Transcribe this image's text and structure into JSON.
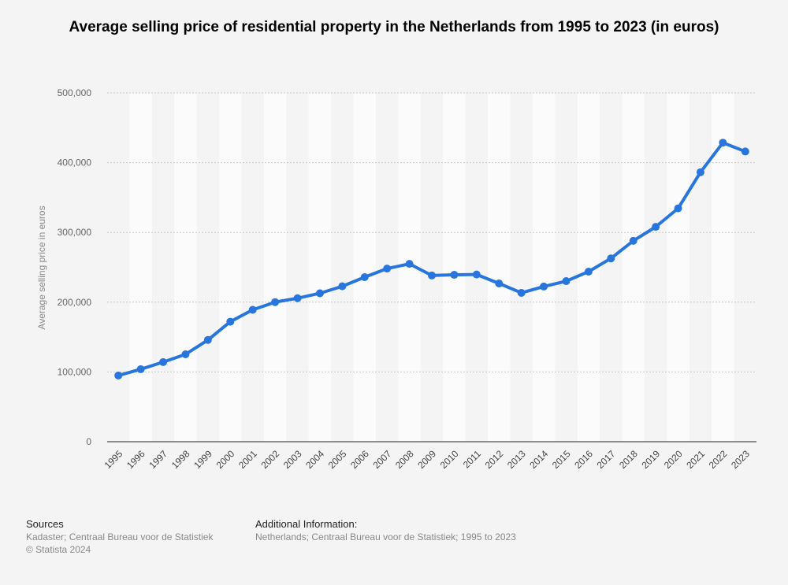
{
  "chart_data": {
    "type": "line",
    "title": "Average selling price of residential property in the Netherlands from 1995 to 2023 (in euros)",
    "xlabel": "",
    "ylabel": "Average selling price in euros",
    "ylim": [
      0,
      500000
    ],
    "yticks": [
      "0",
      "100,000",
      "200,000",
      "300,000",
      "400,000",
      "500,000"
    ],
    "grid": true,
    "line_color": "#2876dd",
    "categories": [
      "1995",
      "1996",
      "1997",
      "1998",
      "1999",
      "2000",
      "2001",
      "2002",
      "2003",
      "2004",
      "2005",
      "2006",
      "2007",
      "2008",
      "2009",
      "2010",
      "2011",
      "2012",
      "2013",
      "2014",
      "2015",
      "2016",
      "2017",
      "2018",
      "2019",
      "2020",
      "2021",
      "2022",
      "2023"
    ],
    "values": [
      94867,
      103924,
      114116,
      125278,
      145853,
      172037,
      189103,
      200086,
      205686,
      212779,
      222753,
      235866,
      248164,
      254918,
      238259,
      239246,
      239699,
      226887,
      213353,
      222425,
      230194,
      243789,
      262747,
      287978,
      307978,
      334488,
      386324,
      428645,
      416000
    ]
  },
  "footer": {
    "sources_label": "Sources",
    "sources_text": "Kadaster; Centraal Bureau voor de Statistiek",
    "copyright": "© Statista 2024",
    "additional_label": "Additional Information:",
    "additional_text": "Netherlands; Centraal Bureau voor de Statistiek; 1995 to 2023"
  }
}
